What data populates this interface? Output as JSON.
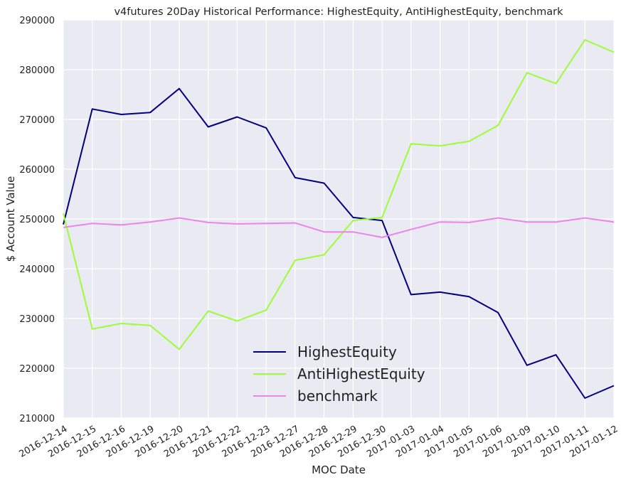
{
  "chart_data": {
    "type": "line",
    "title": "v4futures 20Day Historical Performance: HighestEquity, AntiHighestEquity, benchmark",
    "xlabel": "MOC Date",
    "ylabel": "$ Account Value",
    "ylim": [
      210000,
      290000
    ],
    "yticks": [
      210000,
      220000,
      230000,
      240000,
      250000,
      260000,
      270000,
      280000,
      290000
    ],
    "grid": true,
    "legend_position": "lower-center",
    "background": "#eaeaf2",
    "categories": [
      "2016-12-14",
      "2016-12-15",
      "2016-12-16",
      "2016-12-19",
      "2016-12-20",
      "2016-12-21",
      "2016-12-22",
      "2016-12-23",
      "2016-12-27",
      "2016-12-28",
      "2016-12-29",
      "2016-12-30",
      "2017-01-03",
      "2017-01-04",
      "2017-01-05",
      "2017-01-06",
      "2017-01-09",
      "2017-01-10",
      "2017-01-11",
      "2017-01-12"
    ],
    "series": [
      {
        "name": "HighestEquity",
        "color": "#000080",
        "values": [
          248900,
          272100,
          271000,
          271400,
          276200,
          268500,
          270500,
          268300,
          258300,
          257200,
          250300,
          249700,
          234800,
          235300,
          234400,
          231200,
          220600,
          222700,
          214000,
          216500
        ]
      },
      {
        "name": "AntiHighestEquity",
        "color": "#9aff35",
        "values": [
          251100,
          227900,
          229000,
          228600,
          223800,
          231500,
          229500,
          231700,
          241700,
          242800,
          249700,
          250300,
          265100,
          264700,
          265600,
          268800,
          279400,
          277200,
          286000,
          283500
        ]
      },
      {
        "name": "benchmark",
        "color": "#ee82ee",
        "values": [
          248300,
          249100,
          248800,
          249400,
          250200,
          249300,
          249000,
          249100,
          249200,
          247400,
          247400,
          246300,
          247900,
          249400,
          249300,
          250200,
          249400,
          249400,
          250200,
          249400
        ]
      }
    ]
  }
}
